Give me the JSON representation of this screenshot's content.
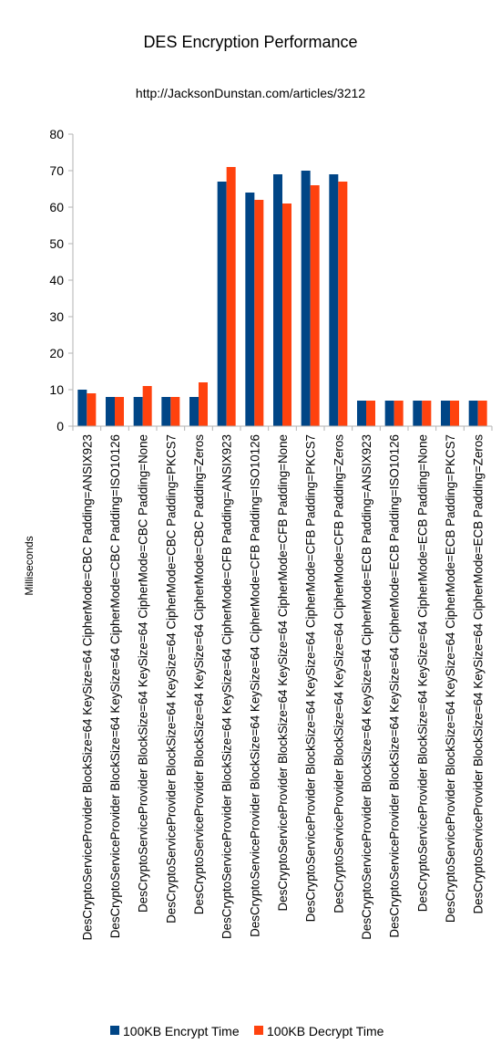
{
  "chart_data": {
    "type": "bar",
    "title": "DES Encryption Performance",
    "subtitle": "http://JacksonDunstan.com/articles/3212",
    "ylabel": "Milliseconds",
    "xlabel": "",
    "ylim": [
      0,
      80
    ],
    "yticks": [
      "0",
      "10",
      "20",
      "30",
      "40",
      "50",
      "60",
      "70",
      "80"
    ],
    "grid": false,
    "legend_position": "bottom",
    "categories": [
      "DesCryptoServiceProvider BlockSize=64 KeySize=64 CipherMode=CBC Padding=ANSIX923",
      "DesCryptoServiceProvider BlockSize=64 KeySize=64 CipherMode=CBC Padding=ISO10126",
      "DesCryptoServiceProvider BlockSize=64 KeySize=64 CipherMode=CBC Padding=None",
      "DesCryptoServiceProvider BlockSize=64 KeySize=64 CipherMode=CBC Padding=PKCS7",
      "DesCryptoServiceProvider BlockSize=64 KeySize=64 CipherMode=CBC Padding=Zeros",
      "DesCryptoServiceProvider BlockSize=64 KeySize=64 CipherMode=CFB Padding=ANSIX923",
      "DesCryptoServiceProvider BlockSize=64 KeySize=64 CipherMode=CFB Padding=ISO10126",
      "DesCryptoServiceProvider BlockSize=64 KeySize=64 CipherMode=CFB Padding=None",
      "DesCryptoServiceProvider BlockSize=64 KeySize=64 CipherMode=CFB Padding=PKCS7",
      "DesCryptoServiceProvider BlockSize=64 KeySize=64 CipherMode=CFB Padding=Zeros",
      "DesCryptoServiceProvider BlockSize=64 KeySize=64 CipherMode=ECB Padding=ANSIX923",
      "DesCryptoServiceProvider BlockSize=64 KeySize=64 CipherMode=ECB Padding=ISO10126",
      "DesCryptoServiceProvider BlockSize=64 KeySize=64 CipherMode=ECB Padding=None",
      "DesCryptoServiceProvider BlockSize=64 KeySize=64 CipherMode=ECB Padding=PKCS7",
      "DesCryptoServiceProvider BlockSize=64 KeySize=64 CipherMode=ECB Padding=Zeros"
    ],
    "series": [
      {
        "name": "100KB Encrypt Time",
        "color": "#004586",
        "values": [
          10,
          8,
          8,
          8,
          8,
          67,
          64,
          69,
          70,
          69,
          7,
          7,
          7,
          7,
          7
        ]
      },
      {
        "name": "100KB Decrypt Time",
        "color": "#ff420e",
        "values": [
          9,
          8,
          11,
          8,
          12,
          71,
          62,
          61,
          66,
          67,
          7,
          7,
          7,
          7,
          7
        ]
      }
    ]
  }
}
